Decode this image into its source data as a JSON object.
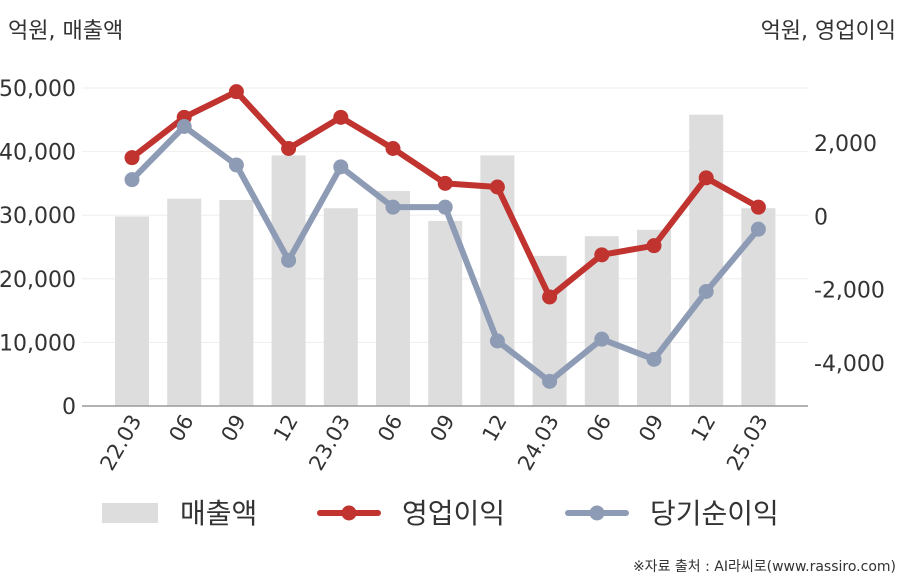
{
  "chart_data": {
    "type": "bar",
    "categories": [
      "22.03",
      "06",
      "09",
      "12",
      "23.03",
      "06",
      "09",
      "12",
      "24.03",
      "06",
      "09",
      "12",
      "25.03"
    ],
    "left_axis_unit": "억원, 매출액",
    "right_axis_unit": "억원, 영업이익",
    "left_axis": {
      "min": 0,
      "max": 50000,
      "ticks": [
        0,
        10000,
        20000,
        30000,
        40000,
        50000
      ],
      "tick_labels": [
        "0",
        "10,000",
        "20,000",
        "30,000",
        "40,000",
        "50,000"
      ]
    },
    "right_axis": {
      "min": -5200,
      "max": 3500,
      "ticks": [
        -4000,
        -2000,
        0,
        2000
      ],
      "tick_labels": [
        "-4,000",
        "-2,000",
        "0",
        "2,000"
      ]
    },
    "series": [
      {
        "name": "매출액",
        "type": "bar",
        "axis": "left",
        "color": "#dddddd",
        "values": [
          29800,
          32600,
          32400,
          39400,
          31100,
          33800,
          29100,
          39400,
          23600,
          26700,
          27700,
          45800,
          31100
        ]
      },
      {
        "name": "영업이익",
        "type": "line",
        "axis": "right",
        "color": "#c0332f",
        "values": [
          1600,
          2700,
          3400,
          1850,
          2700,
          1850,
          900,
          800,
          -2200,
          -1050,
          -800,
          1050,
          250
        ]
      },
      {
        "name": "당기순이익",
        "type": "line",
        "axis": "right",
        "color": "#8e9bb5",
        "values": [
          1000,
          2450,
          1400,
          -1200,
          1350,
          250,
          250,
          -3400,
          -4500,
          -3350,
          -3900,
          -2050,
          -350
        ]
      }
    ],
    "grid": true,
    "legend_position": "bottom",
    "source": "※자료 출처 : AI라씨로(www.rassiro.com)"
  }
}
